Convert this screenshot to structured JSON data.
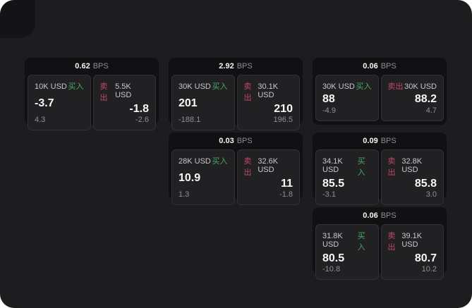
{
  "labels": {
    "bps_unit": "BPS",
    "buy": "买入",
    "sell": "卖出"
  },
  "colors": {
    "page_outside": "#ffffff",
    "panel_bg": "#1d1d1f",
    "corner_panel_bg": "#141416",
    "card_bg": "#111113",
    "pane_bg": "#212124",
    "pane_border": "#323236",
    "buy_green": "#3fae5c",
    "sell_red": "#c2485f",
    "price_text": "#f7f7f7",
    "muted_text": "#909094"
  },
  "cards": [
    {
      "bps": "0.62",
      "buy": {
        "size": "10K USD",
        "price": "-3.7",
        "delta": "4.3"
      },
      "sell": {
        "size": "5.5K USD",
        "price": "-1.8",
        "delta": "-2.6"
      }
    },
    {
      "bps": "2.92",
      "buy": {
        "size": "30K USD",
        "price": "201",
        "delta": "-188.1"
      },
      "sell": {
        "size": "30.1K USD",
        "price": "210",
        "delta": "196.5"
      }
    },
    {
      "bps": "0.06",
      "buy": {
        "size": "30K USD",
        "price": "88",
        "delta": "-4.9"
      },
      "sell": {
        "size": "30K USD",
        "price": "88.2",
        "delta": "4.7"
      }
    },
    {
      "bps": "0.03",
      "buy": {
        "size": "28K USD",
        "price": "10.9",
        "delta": "1.3"
      },
      "sell": {
        "size": "32.6K USD",
        "price": "11",
        "delta": "-1.8"
      }
    },
    {
      "bps": "0.09",
      "buy": {
        "size": "34.1K USD",
        "price": "85.5",
        "delta": "-3.1"
      },
      "sell": {
        "size": "32.8K USD",
        "price": "85.8",
        "delta": "3.0"
      }
    },
    {
      "bps": "0.06",
      "buy": {
        "size": "31.8K USD",
        "price": "80.5",
        "delta": "-10.8"
      },
      "sell": {
        "size": "39.1K USD",
        "price": "80.7",
        "delta": "10.2"
      }
    }
  ]
}
